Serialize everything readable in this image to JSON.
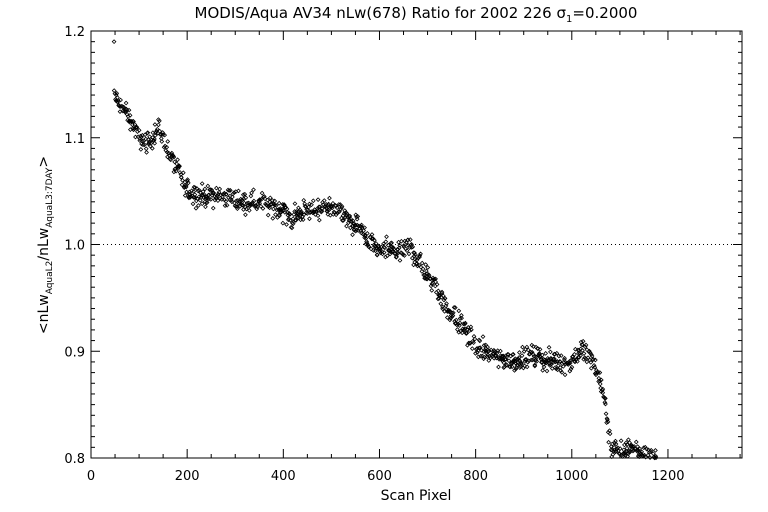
{
  "chart_data": {
    "type": "scatter",
    "title": "MODIS/Aqua AV34 nLw(678) Ratio for 2002 226 σ1=0.2000",
    "title_main": "MODIS/Aqua AV34 nLw(678) Ratio for 2002 226 ",
    "title_sigma": "σ",
    "title_sigma_sub": "1",
    "title_sigma_value": "=0.2000",
    "xlabel": "Scan Pixel",
    "ylabel": "<nLw_AquaL2/nLw_AquaL3:7DAY>",
    "ylabel_parts": {
      "open": "<nLw",
      "sub1": "AquaL2",
      "mid": "/nLw",
      "sub2": "AquaL3:7DAY",
      "close": ">"
    },
    "xlim": [
      0,
      1354
    ],
    "ylim": [
      0.8,
      1.2
    ],
    "x_ticks": [
      0,
      200,
      400,
      600,
      800,
      1000,
      1200
    ],
    "x_tick_labels": [
      "0",
      "200",
      "400",
      "600",
      "800",
      "1000",
      "1200"
    ],
    "y_ticks": [
      0.8,
      0.9,
      1.0,
      1.1,
      1.2
    ],
    "y_tick_labels": [
      "0.8",
      "0.9",
      "1.0",
      "1.1",
      "1.2"
    ],
    "reference_line": {
      "y": 1.0,
      "style": "dotted"
    },
    "grid": false,
    "marker": "diamond",
    "point_color": "#000000",
    "series": [
      {
        "trend_x": [
          48,
          60,
          80,
          100,
          120,
          140,
          160,
          180,
          200,
          240,
          280,
          320,
          360,
          400,
          420,
          440,
          480,
          520,
          540,
          560,
          580,
          600,
          620,
          640,
          660,
          680,
          700,
          720,
          740,
          760,
          780,
          800,
          840,
          880,
          920,
          960,
          1000,
          1020,
          1040,
          1060,
          1070,
          1080,
          1100,
          1120,
          1140,
          1160,
          1175
        ],
        "trend_y": [
          1.14,
          1.13,
          1.12,
          1.1,
          1.095,
          1.11,
          1.09,
          1.07,
          1.05,
          1.045,
          1.045,
          1.04,
          1.04,
          1.03,
          1.025,
          1.03,
          1.035,
          1.03,
          1.02,
          1.015,
          1.0,
          0.995,
          0.995,
          0.99,
          1.0,
          0.985,
          0.97,
          0.96,
          0.94,
          0.93,
          0.92,
          0.905,
          0.895,
          0.89,
          0.895,
          0.89,
          0.89,
          0.9,
          0.895,
          0.87,
          0.85,
          0.81,
          0.805,
          0.81,
          0.805,
          0.802,
          0.8
        ],
        "spread": 0.009,
        "outliers": [
          {
            "x": 48,
            "y": 1.19
          }
        ]
      }
    ]
  }
}
